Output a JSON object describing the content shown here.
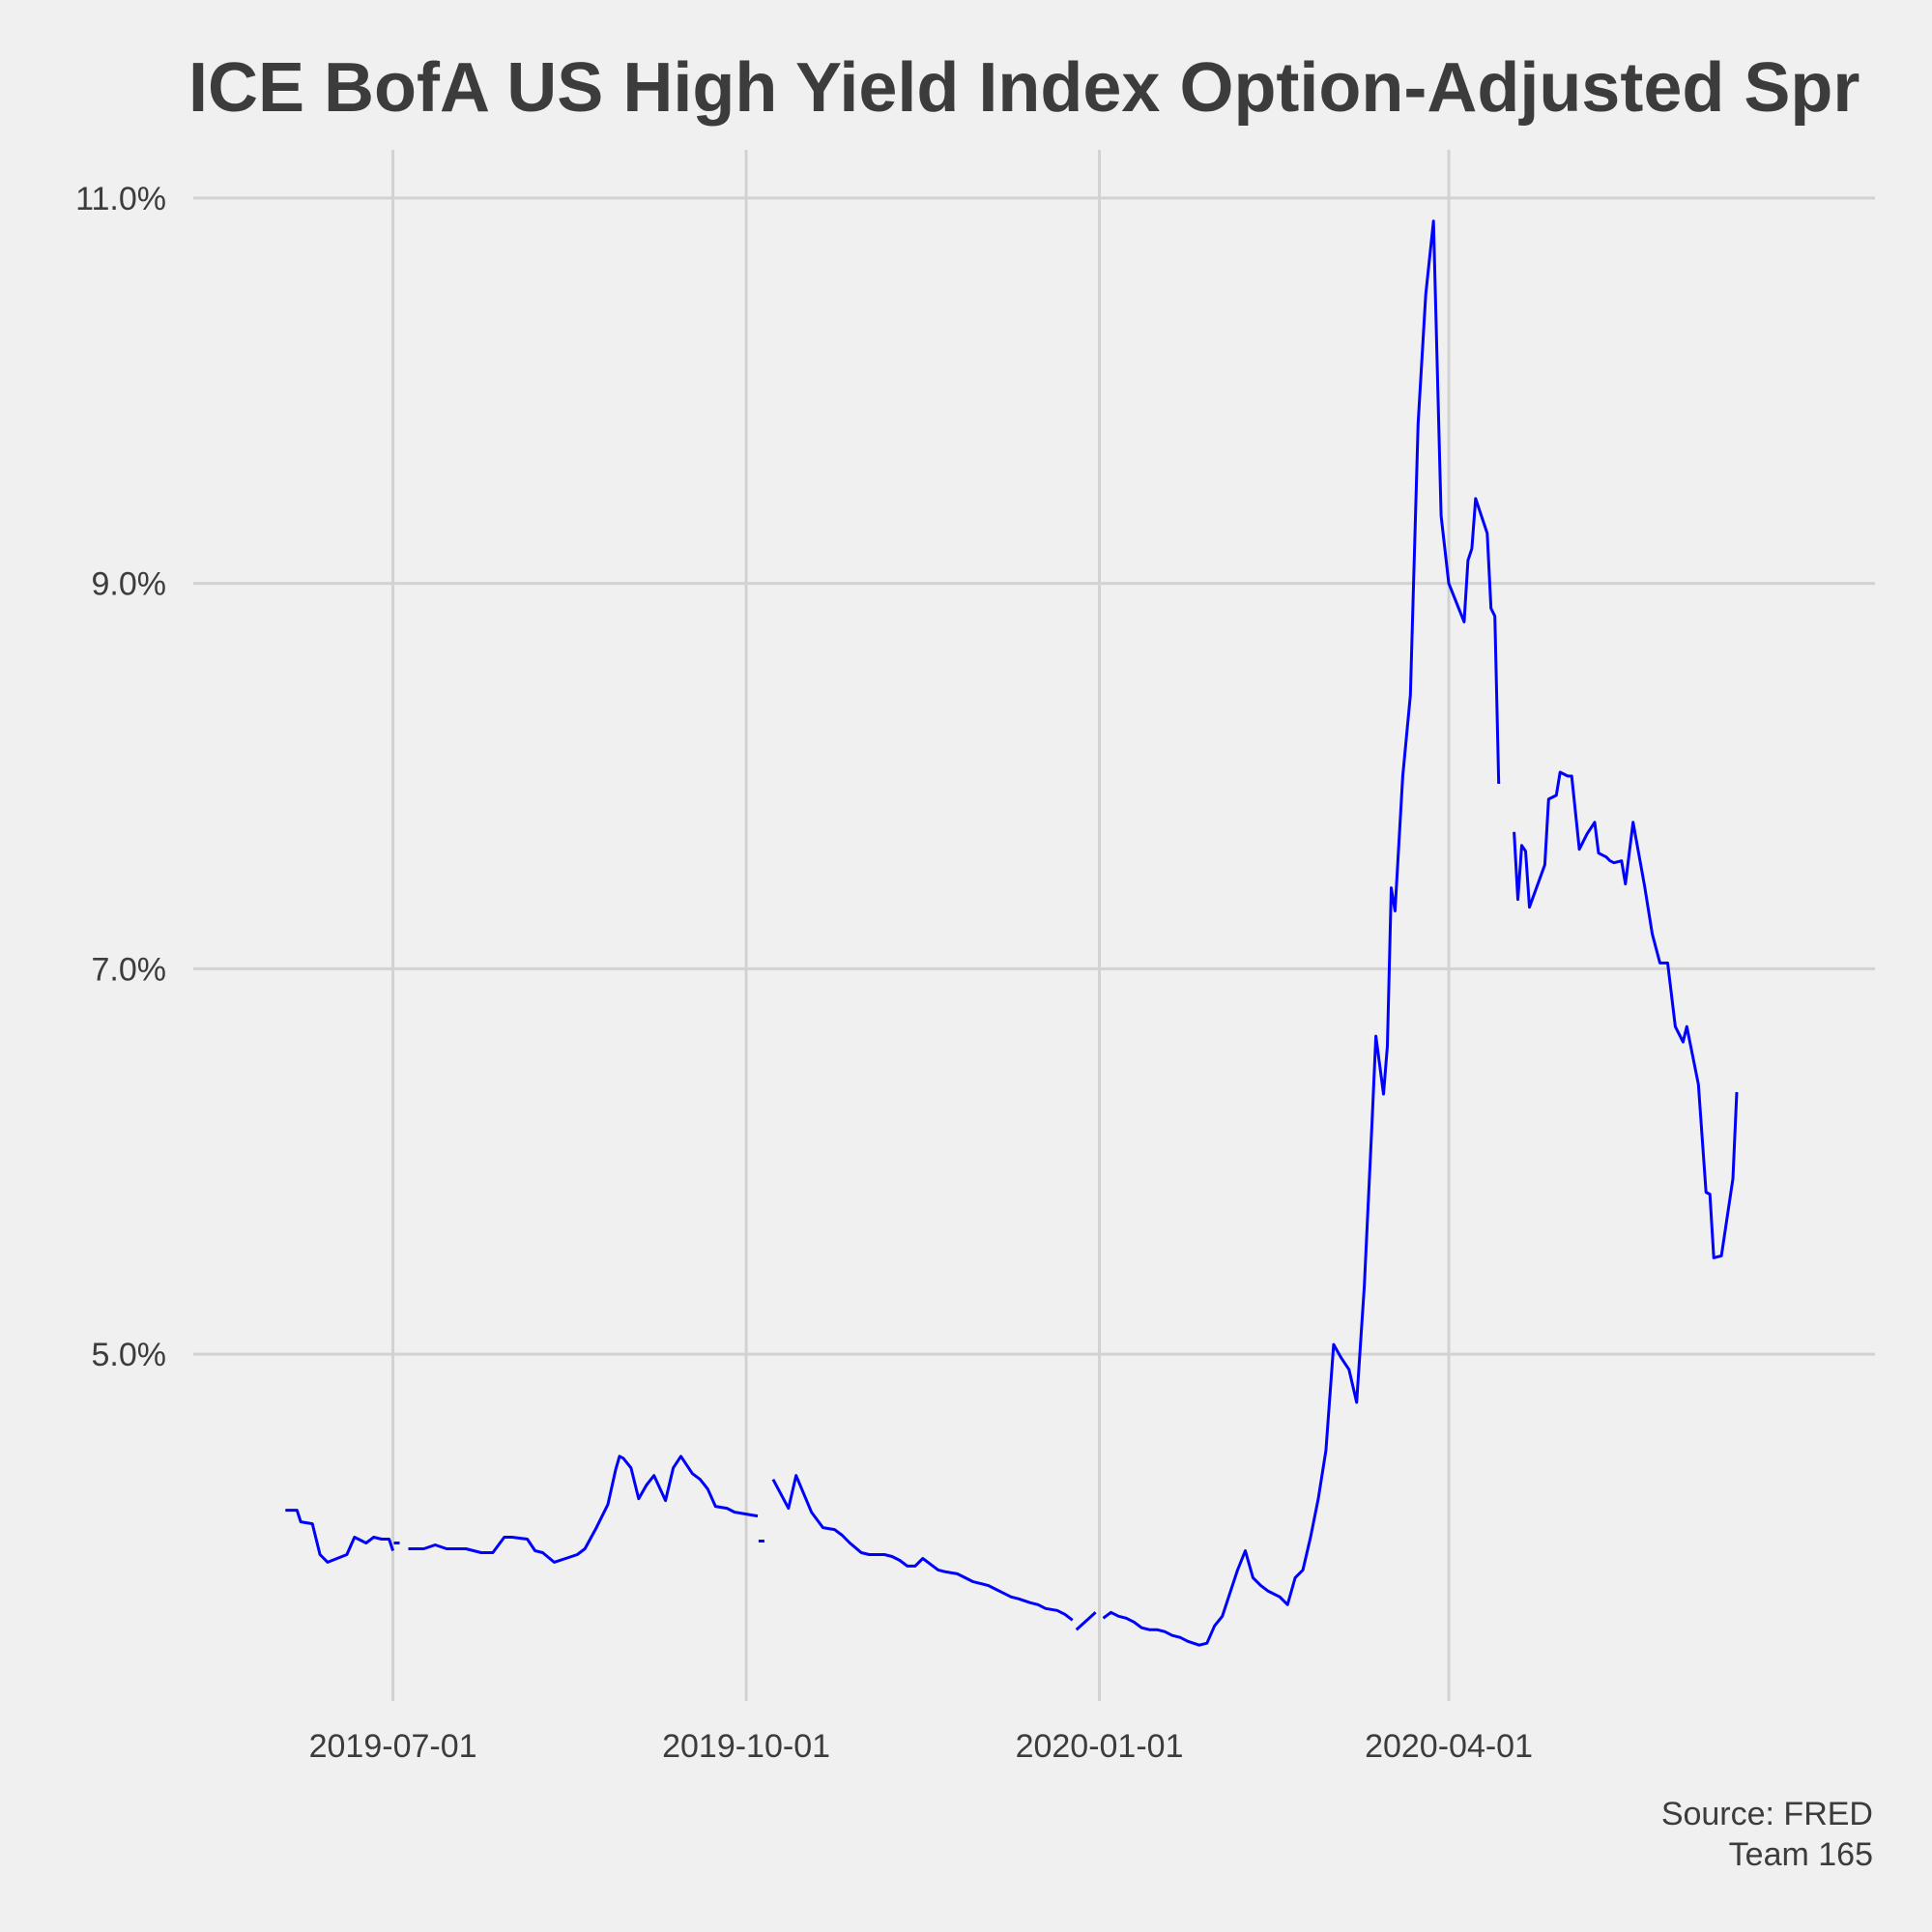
{
  "chart_data": {
    "type": "line",
    "title": "ICE BofA US High Yield Index Option-Adjusted Spr",
    "xlabel": "",
    "ylabel": "",
    "x_range": [
      "2019-05-10",
      "2020-07-21"
    ],
    "ylim": [
      3.2,
      11.25
    ],
    "y_ticks": [
      "5.0%",
      "7.0%",
      "9.0%",
      "11.0%"
    ],
    "y_tick_values": [
      5.0,
      7.0,
      9.0,
      11.0
    ],
    "x_ticks": [
      "2019-07-01",
      "2019-10-01",
      "2020-01-01",
      "2020-04-01"
    ],
    "grid": true,
    "legend": "none",
    "series_color": "#0000ff",
    "caption": [
      "Source: FRED",
      "Team 165"
    ],
    "series": [
      {
        "segments": [
          [
            [
              "2019-06-03",
              4.19
            ],
            [
              "2019-06-06",
              4.19
            ],
            [
              "2019-06-07",
              4.13
            ],
            [
              "2019-06-10",
              4.12
            ],
            [
              "2019-06-12",
              3.96
            ],
            [
              "2019-06-14",
              3.92
            ],
            [
              "2019-06-19",
              3.96
            ],
            [
              "2019-06-21",
              4.05
            ],
            [
              "2019-06-24",
              4.02
            ],
            [
              "2019-06-26",
              4.05
            ],
            [
              "2019-06-28",
              4.04
            ],
            [
              "2019-06-30",
              4.04
            ],
            [
              "2019-07-01",
              3.98
            ]
          ],
          [
            [
              "2019-07-02",
              4.02
            ]
          ],
          [
            [
              "2019-07-05",
              3.99
            ],
            [
              "2019-07-09",
              3.99
            ],
            [
              "2019-07-12",
              4.01
            ],
            [
              "2019-07-15",
              3.99
            ],
            [
              "2019-07-17",
              3.99
            ],
            [
              "2019-07-20",
              3.99
            ],
            [
              "2019-07-24",
              3.97
            ],
            [
              "2019-07-27",
              3.97
            ],
            [
              "2019-07-30",
              4.05
            ],
            [
              "2019-08-01",
              4.05
            ],
            [
              "2019-08-05",
              4.04
            ],
            [
              "2019-08-07",
              3.98
            ],
            [
              "2019-08-09",
              3.97
            ],
            [
              "2019-08-12",
              3.92
            ],
            [
              "2019-08-15",
              3.94
            ],
            [
              "2019-08-18",
              3.96
            ],
            [
              "2019-08-20",
              3.99
            ],
            [
              "2019-08-23",
              4.1
            ],
            [
              "2019-08-26",
              4.22
            ],
            [
              "2019-08-28",
              4.4
            ],
            [
              "2019-08-29",
              4.47
            ],
            [
              "2019-08-30",
              4.46
            ],
            [
              "2019-09-01",
              4.41
            ],
            [
              "2019-09-03",
              4.25
            ],
            [
              "2019-09-05",
              4.32
            ],
            [
              "2019-09-07",
              4.37
            ],
            [
              "2019-09-10",
              4.24
            ],
            [
              "2019-09-12",
              4.41
            ],
            [
              "2019-09-14",
              4.47
            ],
            [
              "2019-09-17",
              4.38
            ],
            [
              "2019-09-19",
              4.35
            ],
            [
              "2019-09-21",
              4.3
            ],
            [
              "2019-09-23",
              4.21
            ],
            [
              "2019-09-26",
              4.2
            ],
            [
              "2019-09-28",
              4.18
            ],
            [
              "2019-10-01",
              4.17
            ],
            [
              "2019-10-04",
              4.16
            ]
          ],
          [
            [
              "2019-10-05",
              4.03
            ]
          ],
          [
            [
              "2019-10-08",
              4.35
            ],
            [
              "2019-10-12",
              4.2
            ],
            [
              "2019-10-14",
              4.37
            ],
            [
              "2019-10-18",
              4.18
            ],
            [
              "2019-10-21",
              4.1
            ],
            [
              "2019-10-24",
              4.09
            ],
            [
              "2019-10-26",
              4.06
            ],
            [
              "2019-10-28",
              4.02
            ],
            [
              "2019-10-31",
              3.97
            ],
            [
              "2019-11-02",
              3.96
            ],
            [
              "2019-11-06",
              3.96
            ],
            [
              "2019-11-08",
              3.95
            ],
            [
              "2019-11-10",
              3.93
            ],
            [
              "2019-11-12",
              3.9
            ],
            [
              "2019-11-14",
              3.9
            ],
            [
              "2019-11-16",
              3.94
            ],
            [
              "2019-11-18",
              3.91
            ],
            [
              "2019-11-20",
              3.88
            ],
            [
              "2019-11-22",
              3.87
            ],
            [
              "2019-11-25",
              3.86
            ],
            [
              "2019-11-27",
              3.84
            ],
            [
              "2019-11-29",
              3.82
            ],
            [
              "2019-12-01",
              3.81
            ],
            [
              "2019-12-03",
              3.8
            ],
            [
              "2019-12-05",
              3.78
            ],
            [
              "2019-12-07",
              3.76
            ],
            [
              "2019-12-09",
              3.74
            ],
            [
              "2019-12-11",
              3.73
            ],
            [
              "2019-12-14",
              3.71
            ],
            [
              "2019-12-16",
              3.7
            ],
            [
              "2019-12-18",
              3.68
            ],
            [
              "2019-12-21",
              3.67
            ],
            [
              "2019-12-23",
              3.65
            ],
            [
              "2019-12-25",
              3.62
            ]
          ],
          [
            [
              "2019-12-26",
              3.57
            ],
            [
              "2019-12-31",
              3.66
            ]
          ],
          [
            [
              "2020-01-02",
              3.63
            ],
            [
              "2020-01-04",
              3.66
            ],
            [
              "2020-01-06",
              3.64
            ],
            [
              "2020-01-08",
              3.63
            ],
            [
              "2020-01-10",
              3.61
            ],
            [
              "2020-01-12",
              3.58
            ],
            [
              "2020-01-14",
              3.57
            ],
            [
              "2020-01-16",
              3.57
            ],
            [
              "2020-01-18",
              3.56
            ],
            [
              "2020-01-20",
              3.54
            ],
            [
              "2020-01-22",
              3.53
            ],
            [
              "2020-01-24",
              3.51
            ],
            [
              "2020-01-27",
              3.49
            ],
            [
              "2020-01-29",
              3.5
            ],
            [
              "2020-01-31",
              3.59
            ],
            [
              "2020-02-02",
              3.64
            ],
            [
              "2020-02-04",
              3.76
            ],
            [
              "2020-02-06",
              3.88
            ],
            [
              "2020-02-08",
              3.98
            ],
            [
              "2020-02-10",
              3.84
            ],
            [
              "2020-02-12",
              3.8
            ],
            [
              "2020-02-14",
              3.77
            ],
            [
              "2020-02-17",
              3.74
            ],
            [
              "2020-02-19",
              3.7
            ],
            [
              "2020-02-21",
              3.84
            ],
            [
              "2020-02-23",
              3.88
            ],
            [
              "2020-02-25",
              4.05
            ],
            [
              "2020-02-27",
              4.25
            ],
            [
              "2020-02-29",
              4.5
            ],
            [
              "2020-03-02",
              5.05
            ],
            [
              "2020-03-04",
              4.98
            ],
            [
              "2020-03-06",
              4.92
            ],
            [
              "2020-03-08",
              4.75
            ],
            [
              "2020-03-10",
              5.35
            ],
            [
              "2020-03-12",
              6.2
            ],
            [
              "2020-03-13",
              6.65
            ],
            [
              "2020-03-15",
              6.35
            ],
            [
              "2020-03-16",
              6.6
            ],
            [
              "2020-03-17",
              7.42
            ],
            [
              "2020-03-18",
              7.3
            ],
            [
              "2020-03-20",
              8.0
            ],
            [
              "2020-03-22",
              8.42
            ],
            [
              "2020-03-24",
              9.83
            ],
            [
              "2020-03-26",
              10.5
            ],
            [
              "2020-03-28",
              10.88
            ],
            [
              "2020-03-30",
              9.35
            ],
            [
              "2020-04-01",
              9.0
            ],
            [
              "2020-04-05",
              8.8
            ],
            [
              "2020-04-06",
              9.12
            ],
            [
              "2020-04-07",
              9.18
            ],
            [
              "2020-04-08",
              9.44
            ],
            [
              "2020-04-11",
              9.26
            ],
            [
              "2020-04-12",
              8.87
            ],
            [
              "2020-04-13",
              8.83
            ],
            [
              "2020-04-14",
              7.96
            ]
          ],
          [
            [
              "2020-04-18",
              7.71
            ],
            [
              "2020-04-19",
              7.36
            ],
            [
              "2020-04-20",
              7.64
            ],
            [
              "2020-04-21",
              7.61
            ],
            [
              "2020-04-22",
              7.32
            ],
            [
              "2020-04-26",
              7.54
            ],
            [
              "2020-04-27",
              7.88
            ],
            [
              "2020-04-29",
              7.9
            ],
            [
              "2020-04-30",
              8.02
            ],
            [
              "2020-05-02",
              8.0
            ],
            [
              "2020-05-03",
              8.0
            ],
            [
              "2020-05-05",
              7.62
            ],
            [
              "2020-05-07",
              7.7
            ],
            [
              "2020-05-09",
              7.76
            ],
            [
              "2020-05-10",
              7.6
            ],
            [
              "2020-05-12",
              7.58
            ],
            [
              "2020-05-13",
              7.56
            ],
            [
              "2020-05-14",
              7.55
            ],
            [
              "2020-05-16",
              7.56
            ],
            [
              "2020-05-17",
              7.44
            ],
            [
              "2020-05-19",
              7.76
            ],
            [
              "2020-05-22",
              7.43
            ],
            [
              "2020-05-24",
              7.18
            ],
            [
              "2020-05-26",
              7.03
            ],
            [
              "2020-05-28",
              7.03
            ],
            [
              "2020-05-30",
              6.7
            ],
            [
              "2020-06-01",
              6.62
            ],
            [
              "2020-06-02",
              6.7
            ],
            [
              "2020-06-05",
              6.4
            ],
            [
              "2020-06-07",
              5.84
            ],
            [
              "2020-06-08",
              5.83
            ],
            [
              "2020-06-09",
              5.5
            ],
            [
              "2020-06-11",
              5.51
            ],
            [
              "2020-06-14",
              5.91
            ],
            [
              "2020-06-15",
              6.36
            ]
          ]
        ]
      }
    ]
  }
}
